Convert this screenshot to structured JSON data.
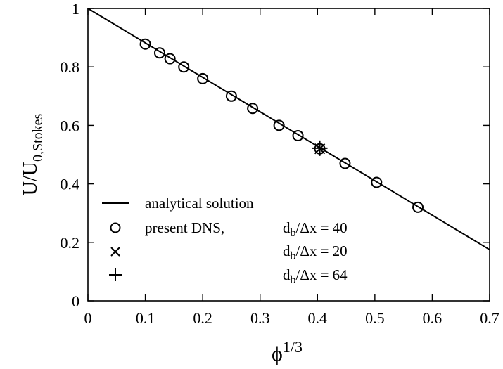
{
  "chart_data": {
    "type": "scatter",
    "xlim": [
      0,
      0.7
    ],
    "ylim": [
      0,
      1
    ],
    "x_ticks": [
      "0",
      "0.1",
      "0.2",
      "0.3",
      "0.4",
      "0.5",
      "0.6",
      "0.7"
    ],
    "y_ticks": [
      "0",
      "0.2",
      "0.4",
      "0.6",
      "0.8",
      "1"
    ],
    "xlabel": {
      "base": "ϕ",
      "sup": "1/3"
    },
    "ylabel": {
      "main": "U/U",
      "sub": "0,Stokes"
    },
    "grid": false,
    "legend_position": "bottom-left",
    "analytical_line": {
      "x": [
        0,
        0.7
      ],
      "y": [
        1.0,
        0.175
      ]
    },
    "series": [
      {
        "marker": "circle",
        "legend": {
          "prefix": "present DNS,",
          "d": "d",
          "sub": "b",
          "ratio": "/Δx = 40"
        },
        "x": [
          0.1,
          0.125,
          0.143,
          0.167,
          0.2,
          0.25,
          0.287,
          0.333,
          0.366,
          0.404,
          0.448,
          0.503,
          0.575
        ],
        "y": [
          0.878,
          0.848,
          0.828,
          0.8,
          0.76,
          0.7,
          0.658,
          0.6,
          0.565,
          0.52,
          0.47,
          0.405,
          0.32
        ]
      },
      {
        "marker": "x",
        "legend": {
          "d": "d",
          "sub": "b",
          "ratio": "/Δx = 20"
        },
        "x": [
          0.404
        ],
        "y": [
          0.52
        ]
      },
      {
        "marker": "plus",
        "legend": {
          "d": "d",
          "sub": "b",
          "ratio": "/Δx = 64"
        },
        "x": [
          0.404
        ],
        "y": [
          0.522
        ]
      }
    ],
    "line_legend": "analytical solution"
  }
}
